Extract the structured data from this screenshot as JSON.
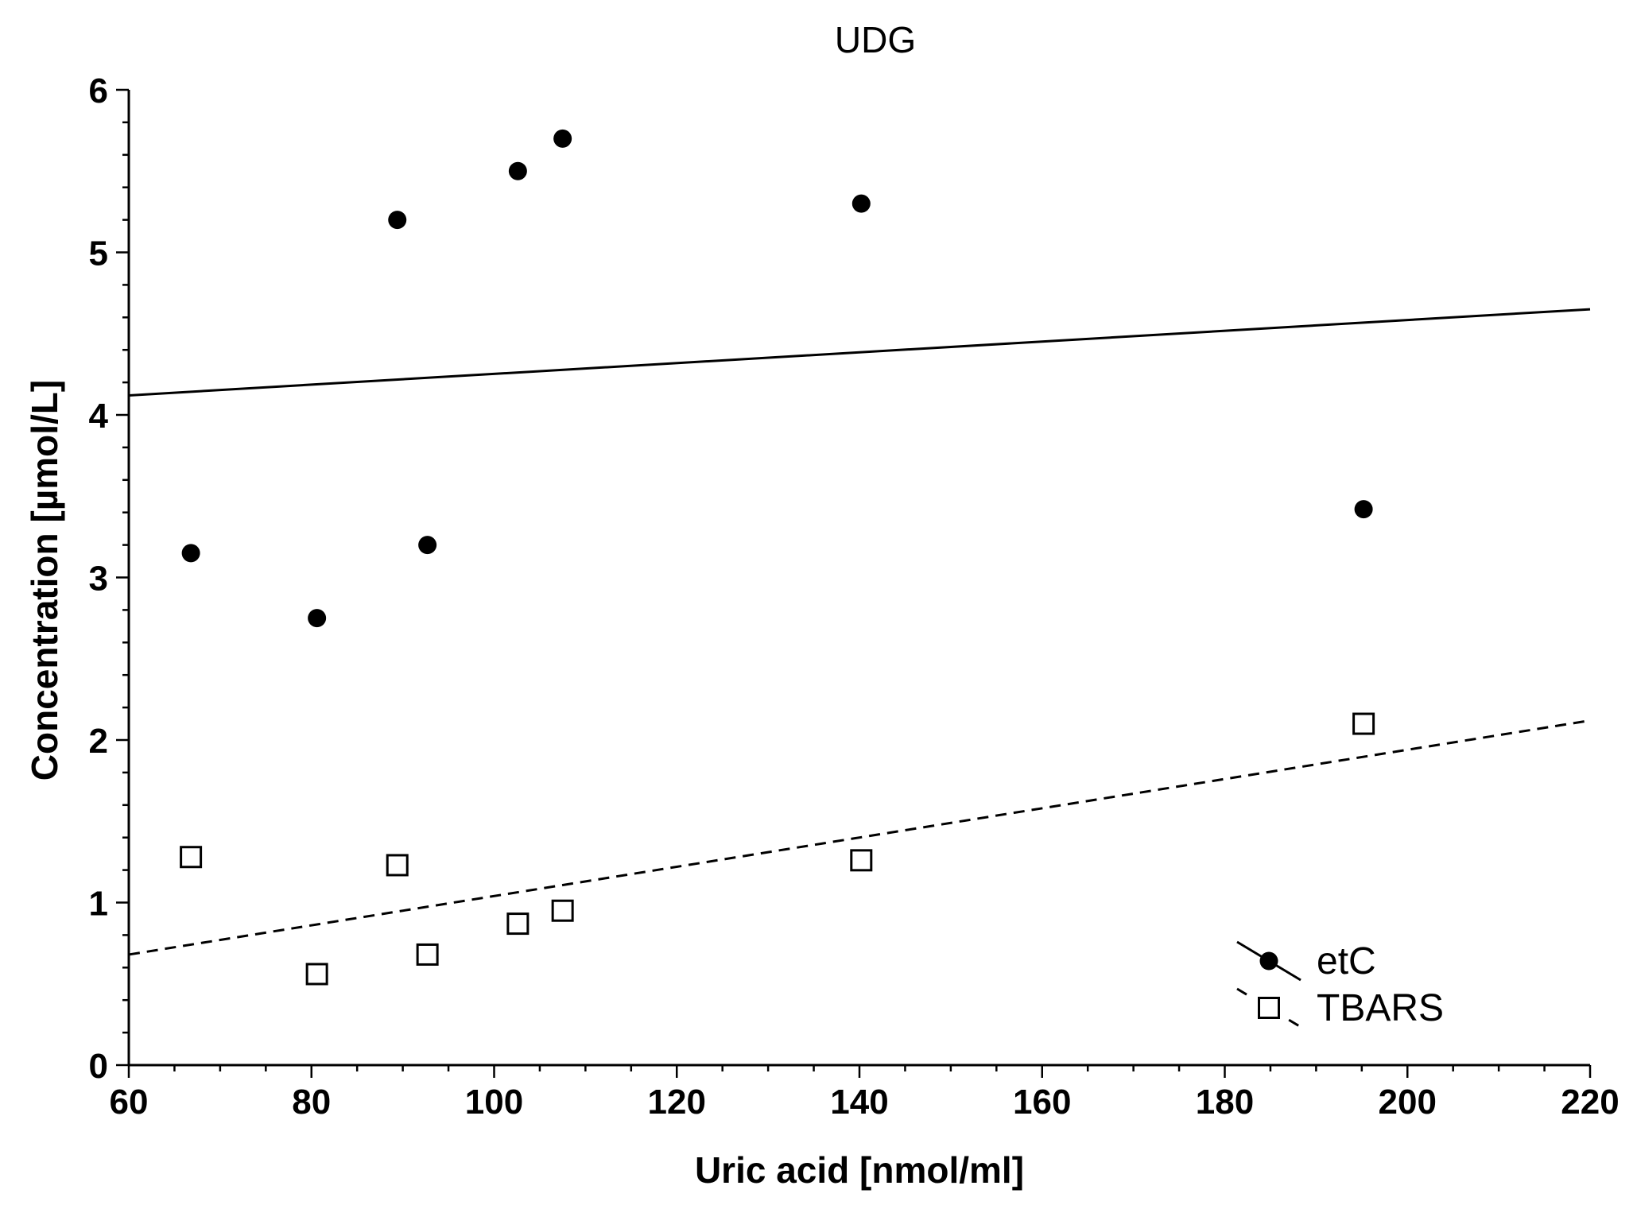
{
  "chart_data": {
    "type": "scatter",
    "title": "UDG",
    "xlabel": "Uric acid [nmol/ml]",
    "ylabel": "Concentration [µmol/L]",
    "xlim": [
      60,
      220
    ],
    "ylim": [
      0,
      6
    ],
    "xticks": [
      60,
      80,
      100,
      120,
      140,
      160,
      180,
      200,
      220
    ],
    "yticks": [
      0,
      1,
      2,
      3,
      4,
      5,
      6
    ],
    "legend_position": "bottom-right",
    "series": [
      {
        "name": "etC",
        "marker": "filled-circle",
        "line_style": "solid",
        "x": [
          66.8,
          80.6,
          89.4,
          92.7,
          102.6,
          107.5,
          140.2,
          195.2
        ],
        "y": [
          3.15,
          2.75,
          5.2,
          3.2,
          5.5,
          5.7,
          5.3,
          3.42
        ],
        "fit": {
          "x": [
            60,
            220
          ],
          "y": [
            4.12,
            4.65
          ]
        }
      },
      {
        "name": "TBARS",
        "marker": "open-square",
        "line_style": "dashed",
        "x": [
          66.8,
          80.6,
          89.4,
          92.7,
          102.6,
          107.5,
          140.2,
          195.2
        ],
        "y": [
          1.28,
          0.56,
          1.23,
          0.68,
          0.87,
          0.95,
          1.26,
          2.1
        ],
        "fit": {
          "x": [
            60,
            220
          ],
          "y": [
            0.68,
            2.12
          ]
        }
      }
    ]
  }
}
